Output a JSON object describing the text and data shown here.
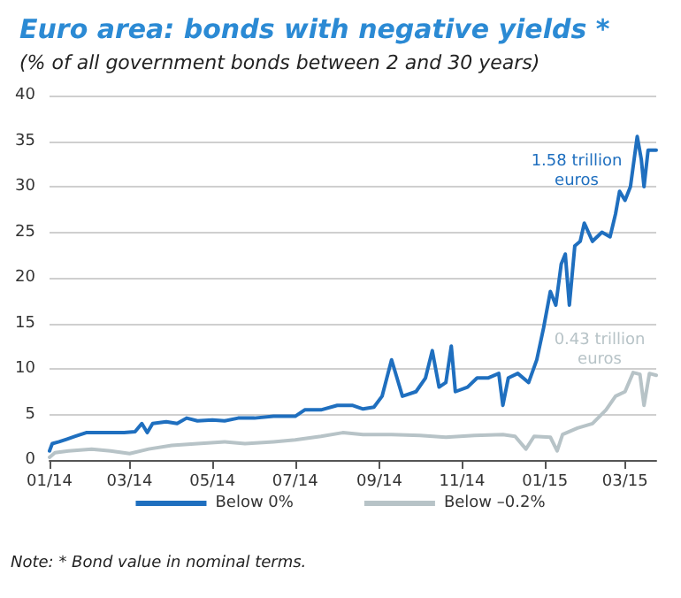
{
  "chart_data": {
    "type": "line",
    "title": "Euro area: bonds with negative yields *",
    "subtitle": "(% of all government bonds between 2 and 30 years)",
    "series": [
      {
        "name": "Below 0%",
        "color": "#1f6fbf",
        "x": [
          "2014-01-01",
          "2014-01-03",
          "2014-01-08",
          "2014-01-14",
          "2014-01-20",
          "2014-01-28",
          "2014-02-10",
          "2014-02-25",
          "2014-03-05",
          "2014-03-10",
          "2014-03-14",
          "2014-03-18",
          "2014-03-28",
          "2014-04-05",
          "2014-04-12",
          "2014-04-20",
          "2014-05-01",
          "2014-05-10",
          "2014-05-20",
          "2014-06-01",
          "2014-06-15",
          "2014-07-01",
          "2014-07-08",
          "2014-07-20",
          "2014-08-01",
          "2014-08-12",
          "2014-08-20",
          "2014-08-28",
          "2014-09-03",
          "2014-09-10",
          "2014-09-14",
          "2014-09-18",
          "2014-09-28",
          "2014-10-05",
          "2014-10-10",
          "2014-10-15",
          "2014-10-20",
          "2014-10-24",
          "2014-10-27",
          "2014-11-05",
          "2014-11-12",
          "2014-11-20",
          "2014-11-28",
          "2014-12-01",
          "2014-12-05",
          "2014-12-12",
          "2014-12-20",
          "2014-12-26",
          "2014-12-31",
          "2015-01-05",
          "2015-01-09",
          "2015-01-13",
          "2015-01-16",
          "2015-01-19",
          "2015-01-23",
          "2015-01-27",
          "2015-01-30",
          "2015-02-05",
          "2015-02-12",
          "2015-02-18",
          "2015-02-22",
          "2015-02-25",
          "2015-03-01",
          "2015-03-05",
          "2015-03-10",
          "2015-03-13",
          "2015-03-15",
          "2015-03-18",
          "2015-03-24"
        ],
        "values": [
          1.0,
          1.8,
          2.0,
          2.3,
          2.6,
          3.0,
          3.0,
          3.0,
          3.1,
          4.0,
          3.0,
          4.0,
          4.2,
          4.0,
          4.6,
          4.3,
          4.4,
          4.3,
          4.6,
          4.6,
          4.8,
          4.8,
          5.5,
          5.5,
          6.0,
          6.0,
          5.6,
          5.8,
          7.0,
          11.0,
          9.0,
          7.0,
          7.5,
          9.0,
          12.0,
          8.0,
          8.5,
          12.5,
          7.5,
          8.0,
          9.0,
          9.0,
          9.5,
          6.0,
          9.0,
          9.5,
          8.5,
          11.0,
          14.5,
          18.5,
          17.0,
          21.5,
          22.6,
          17.0,
          23.5,
          24.0,
          26.0,
          24.0,
          25.0,
          24.5,
          27.0,
          29.5,
          28.5,
          30.0,
          35.5,
          33.0,
          30.0,
          34.0,
          34.0
        ]
      },
      {
        "name": "Below –0.2%",
        "color": "#b7c3c7",
        "x": [
          "2014-01-01",
          "2014-01-05",
          "2014-01-15",
          "2014-02-01",
          "2014-02-15",
          "2014-03-01",
          "2014-03-15",
          "2014-04-01",
          "2014-04-20",
          "2014-05-10",
          "2014-05-25",
          "2014-06-15",
          "2014-07-01",
          "2014-07-20",
          "2014-08-05",
          "2014-08-20",
          "2014-09-10",
          "2014-10-01",
          "2014-10-20",
          "2014-11-10",
          "2014-12-01",
          "2014-12-10",
          "2014-12-18",
          "2014-12-24",
          "2015-01-05",
          "2015-01-10",
          "2015-01-14",
          "2015-01-25",
          "2015-02-05",
          "2015-02-15",
          "2015-02-22",
          "2015-03-01",
          "2015-03-07",
          "2015-03-12",
          "2015-03-15",
          "2015-03-19",
          "2015-03-24"
        ],
        "values": [
          0.3,
          0.8,
          1.0,
          1.2,
          1.0,
          0.7,
          1.2,
          1.6,
          1.8,
          2.0,
          1.8,
          2.0,
          2.2,
          2.6,
          3.0,
          2.8,
          2.8,
          2.7,
          2.5,
          2.7,
          2.8,
          2.6,
          1.2,
          2.6,
          2.5,
          1.0,
          2.8,
          3.5,
          4.0,
          5.5,
          7.0,
          7.5,
          9.6,
          9.4,
          6.0,
          9.5,
          9.3
        ]
      }
    ],
    "xlim": [
      "2014-01-01",
      "2015-03-24"
    ],
    "xticks": [
      {
        "value": "2014-01-01",
        "label": "01/14"
      },
      {
        "value": "2014-03-01",
        "label": "03/14"
      },
      {
        "value": "2014-05-01",
        "label": "05/14"
      },
      {
        "value": "2014-07-01",
        "label": "07/14"
      },
      {
        "value": "2014-09-01",
        "label": "09/14"
      },
      {
        "value": "2014-11-01",
        "label": "11/14"
      },
      {
        "value": "2015-01-01",
        "label": "01/15"
      },
      {
        "value": "2015-03-01",
        "label": "03/15"
      }
    ],
    "ylim": [
      0,
      40
    ],
    "yticks": [
      0,
      5,
      10,
      15,
      20,
      25,
      30,
      35,
      40
    ],
    "grid": "y",
    "legend": "bottom",
    "marker": "none",
    "line_style": "solid",
    "annotations": [
      "1.58 trillion\neuros",
      "0.43 trillion\neuros",
      "Note: * Bond value in nominal terms."
    ]
  }
}
